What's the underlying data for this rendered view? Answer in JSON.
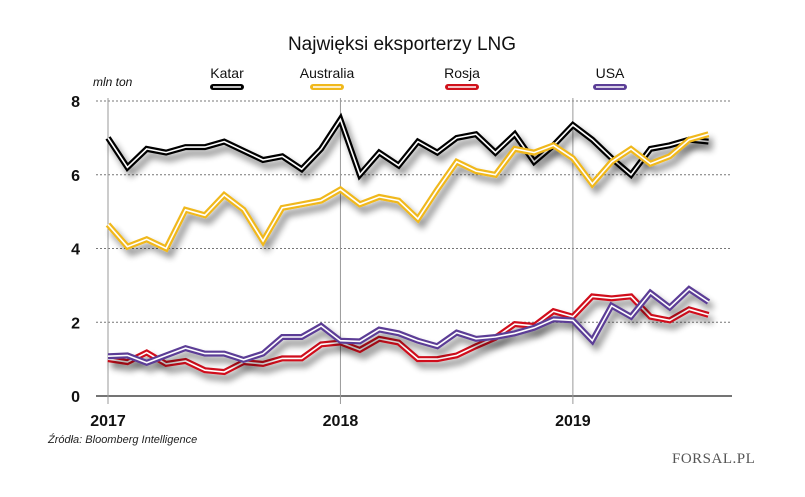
{
  "chart_data": {
    "type": "line",
    "title": "Najwięksi eksporterzy LNG",
    "ylabel": "mln ton",
    "xlabel": "",
    "ylim": [
      0,
      8
    ],
    "yticks": [
      0,
      2,
      4,
      6,
      8
    ],
    "x_start": "2017-01",
    "x_frequency": "monthly",
    "x_tick_labels": [
      {
        "label": "2017",
        "index": 0
      },
      {
        "label": "2018",
        "index": 12
      },
      {
        "label": "2019",
        "index": 24
      }
    ],
    "grid": "horizontal dotted",
    "legend_position": "top",
    "source": "Źródła: Bloomberg Intelligence",
    "logo": "FORSAL.PL",
    "series": [
      {
        "name": "Katar",
        "color": "#000000",
        "values": [
          7.0,
          6.2,
          6.7,
          6.6,
          6.75,
          6.75,
          6.9,
          6.65,
          6.4,
          6.5,
          6.15,
          6.7,
          7.5,
          6.0,
          6.6,
          6.25,
          6.9,
          6.6,
          7.0,
          7.1,
          6.6,
          7.1,
          6.35,
          6.8,
          7.35,
          6.95,
          6.45,
          6.0,
          6.7,
          6.8,
          6.95,
          6.9
        ]
      },
      {
        "name": "Australia",
        "color": "#f0b81c",
        "values": [
          4.65,
          4.05,
          4.25,
          4.0,
          5.05,
          4.9,
          5.45,
          5.05,
          4.2,
          5.1,
          5.2,
          5.3,
          5.6,
          5.2,
          5.4,
          5.3,
          4.8,
          5.6,
          6.35,
          6.1,
          6.0,
          6.7,
          6.6,
          6.8,
          6.45,
          5.75,
          6.35,
          6.7,
          6.3,
          6.5,
          6.95,
          7.1
        ]
      },
      {
        "name": "Rosja",
        "color": "#d0111b",
        "values": [
          1.0,
          0.92,
          1.18,
          0.87,
          0.95,
          0.7,
          0.65,
          0.92,
          0.87,
          1.02,
          1.02,
          1.4,
          1.45,
          1.25,
          1.55,
          1.45,
          1.0,
          1.0,
          1.1,
          1.35,
          1.58,
          1.95,
          1.9,
          2.3,
          2.15,
          2.7,
          2.65,
          2.7,
          2.15,
          2.05,
          2.35,
          2.2
        ]
      },
      {
        "name": "USA",
        "color": "#5b3e96",
        "values": [
          1.08,
          1.1,
          0.9,
          1.1,
          1.3,
          1.15,
          1.15,
          0.98,
          1.15,
          1.6,
          1.6,
          1.9,
          1.5,
          1.48,
          1.8,
          1.7,
          1.5,
          1.35,
          1.72,
          1.55,
          1.6,
          1.7,
          1.85,
          2.08,
          2.05,
          1.5,
          2.45,
          2.15,
          2.8,
          2.4,
          2.9,
          2.55
        ]
      }
    ]
  }
}
